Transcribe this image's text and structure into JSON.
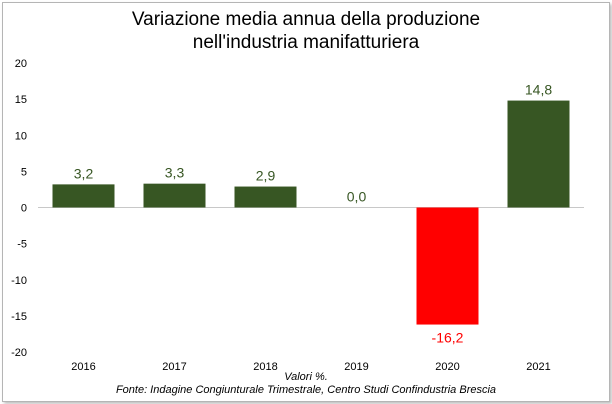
{
  "chart_data": {
    "type": "bar",
    "title_lines": [
      "Variazione media annua della produzione",
      "nell'industria manifatturiera"
    ],
    "categories": [
      "2016",
      "2017",
      "2018",
      "2019",
      "2020",
      "2021"
    ],
    "values": [
      3.2,
      3.3,
      2.9,
      0.0,
      -16.2,
      14.8
    ],
    "data_labels": [
      "3,2",
      "3,3",
      "2,9",
      "0,0",
      "-16,2",
      "14,8"
    ],
    "y_ticks": [
      20,
      15,
      10,
      5,
      0,
      -5,
      -10,
      -15,
      -20
    ],
    "y_tick_labels": [
      "20",
      "15",
      "10",
      "5",
      "0",
      "-5",
      "-10",
      "-15",
      "-20"
    ],
    "ylim": [
      -20,
      20
    ],
    "grid": false,
    "colors": {
      "positive": "#375623",
      "negative": "#ff0000",
      "positive_label": "#375623",
      "negative_label": "#ff0000"
    },
    "footer_lines": [
      "Valori %.",
      "Fonte: Indagine Congiunturale Trimestrale, Centro Studi Confindustria Brescia"
    ]
  }
}
